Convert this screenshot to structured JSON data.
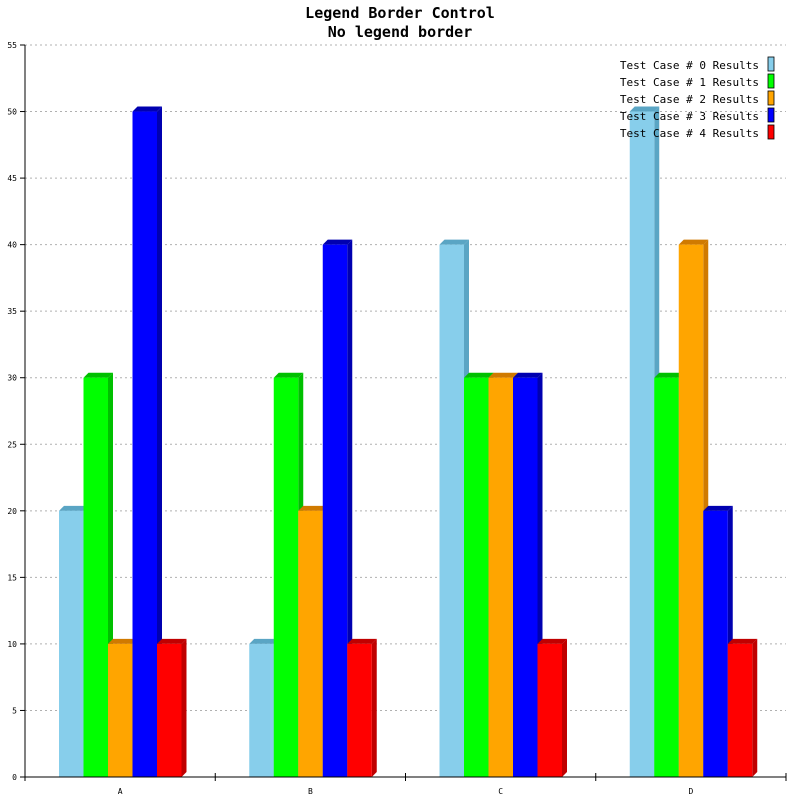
{
  "chart_data": {
    "type": "bar",
    "title": "Legend Border Control",
    "subtitle": "No legend border",
    "categories": [
      "A",
      "B",
      "C",
      "D"
    ],
    "ylim": [
      0,
      55
    ],
    "yticks": [
      0,
      5,
      10,
      15,
      20,
      25,
      30,
      35,
      40,
      45,
      50,
      55
    ],
    "grid": true,
    "legend_position": "top-right",
    "legend_border": false,
    "series": [
      {
        "name": "Test Case # 0 Results",
        "values": [
          20,
          10,
          40,
          50
        ],
        "color": "#87ceeb",
        "side_color": "#5aa5c4"
      },
      {
        "name": "Test Case # 1 Results",
        "values": [
          30,
          30,
          30,
          30
        ],
        "color": "#00ff00",
        "side_color": "#00c000"
      },
      {
        "name": "Test Case # 2 Results",
        "values": [
          10,
          20,
          30,
          40
        ],
        "color": "#ffa500",
        "side_color": "#d07a00"
      },
      {
        "name": "Test Case # 3 Results",
        "values": [
          50,
          40,
          30,
          20
        ],
        "color": "#0000ff",
        "side_color": "#0000b0"
      },
      {
        "name": "Test Case # 4 Results",
        "values": [
          10,
          10,
          10,
          10
        ],
        "color": "#ff0000",
        "side_color": "#c00000"
      }
    ]
  }
}
